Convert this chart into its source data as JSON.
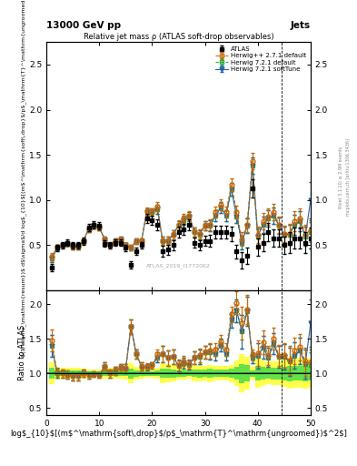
{
  "title_top": "13000 GeV pp",
  "title_right": "Jets",
  "plot_title": "Relative jet mass ρ (ATLAS soft-drop observables)",
  "ylabel_main": "(1/σ$_{resum}$) dσ/d log$_{10}$[(m$^{soft drop}$/p$_T^{ungroomed}$)$^2$]",
  "ylabel_ratio": "Ratio to ATLAS",
  "xlabel": "log$_{10}$[(m$^{soft drop}$/p$_T^{ungroomed}$)$^2$]",
  "watermark": "ATLAS_2019_I1772062",
  "right_label1": "Rivet 3.1.10; ≥ 2.9M events",
  "right_label2": "mcplots.cern.ch [arXiv:1306.3436]",
  "legend_entries": [
    "ATLAS",
    "Herwig++ 2.7.1 default",
    "Herwig 7.2.1 default",
    "Herwig 7.2.1 softTune"
  ],
  "hppcolor": "#cc6600",
  "h721color": "#33aa33",
  "h721stcolor": "#2266aa",
  "x_data": [
    1,
    2,
    3,
    4,
    5,
    6,
    7,
    8,
    9,
    10,
    11,
    12,
    13,
    14,
    15,
    16,
    17,
    18,
    19,
    20,
    21,
    22,
    23,
    24,
    25,
    26,
    27,
    28,
    29,
    30,
    31,
    32,
    33,
    34,
    35,
    36,
    37,
    38,
    39,
    40,
    41,
    42,
    43,
    44,
    45,
    46,
    47,
    48,
    49,
    50
  ],
  "atlas_y": [
    0.25,
    0.47,
    0.5,
    0.53,
    0.5,
    0.5,
    0.55,
    0.7,
    0.73,
    0.72,
    0.52,
    0.5,
    0.53,
    0.53,
    0.47,
    0.28,
    0.43,
    0.5,
    0.8,
    0.78,
    0.73,
    0.43,
    0.45,
    0.5,
    0.65,
    0.68,
    0.73,
    0.53,
    0.5,
    0.55,
    0.55,
    0.65,
    0.65,
    0.65,
    0.63,
    0.43,
    0.33,
    0.38,
    1.13,
    0.48,
    0.53,
    0.65,
    0.58,
    0.58,
    0.5,
    0.53,
    0.58,
    0.58,
    0.53,
    0.58
  ],
  "atlas_yerr_lo": [
    0.04,
    0.04,
    0.04,
    0.04,
    0.04,
    0.04,
    0.04,
    0.04,
    0.04,
    0.04,
    0.04,
    0.04,
    0.04,
    0.04,
    0.04,
    0.04,
    0.04,
    0.04,
    0.05,
    0.05,
    0.06,
    0.06,
    0.06,
    0.06,
    0.06,
    0.06,
    0.06,
    0.06,
    0.06,
    0.06,
    0.07,
    0.07,
    0.07,
    0.07,
    0.08,
    0.08,
    0.09,
    0.09,
    0.1,
    0.1,
    0.1,
    0.1,
    0.1,
    0.1,
    0.1,
    0.12,
    0.12,
    0.12,
    0.12,
    0.12
  ],
  "atlas_yerr_hi": [
    0.04,
    0.04,
    0.04,
    0.04,
    0.04,
    0.04,
    0.04,
    0.04,
    0.04,
    0.04,
    0.04,
    0.04,
    0.04,
    0.04,
    0.04,
    0.04,
    0.04,
    0.04,
    0.05,
    0.05,
    0.06,
    0.06,
    0.06,
    0.06,
    0.06,
    0.06,
    0.06,
    0.06,
    0.06,
    0.06,
    0.07,
    0.07,
    0.07,
    0.07,
    0.08,
    0.08,
    0.09,
    0.09,
    0.1,
    0.1,
    0.1,
    0.1,
    0.1,
    0.1,
    0.1,
    0.12,
    0.12,
    0.12,
    0.12,
    0.12
  ],
  "hpp_y": [
    0.37,
    0.48,
    0.5,
    0.52,
    0.48,
    0.48,
    0.55,
    0.68,
    0.72,
    0.7,
    0.57,
    0.5,
    0.55,
    0.57,
    0.5,
    0.47,
    0.55,
    0.55,
    0.88,
    0.87,
    0.93,
    0.55,
    0.55,
    0.62,
    0.73,
    0.8,
    0.83,
    0.65,
    0.63,
    0.72,
    0.73,
    0.87,
    0.95,
    0.87,
    1.17,
    0.87,
    0.57,
    0.73,
    1.43,
    0.62,
    0.77,
    0.82,
    0.87,
    0.73,
    0.63,
    0.63,
    0.77,
    0.8,
    0.62,
    0.67
  ],
  "hpp_yerr": [
    0.04,
    0.03,
    0.03,
    0.03,
    0.03,
    0.03,
    0.03,
    0.03,
    0.03,
    0.03,
    0.03,
    0.03,
    0.03,
    0.03,
    0.03,
    0.03,
    0.03,
    0.03,
    0.04,
    0.04,
    0.05,
    0.05,
    0.05,
    0.05,
    0.05,
    0.05,
    0.05,
    0.05,
    0.05,
    0.05,
    0.06,
    0.06,
    0.06,
    0.06,
    0.07,
    0.07,
    0.08,
    0.08,
    0.09,
    0.09,
    0.09,
    0.09,
    0.09,
    0.09,
    0.09,
    0.11,
    0.11,
    0.11,
    0.11,
    0.11
  ],
  "h721_y": [
    0.35,
    0.47,
    0.5,
    0.52,
    0.48,
    0.48,
    0.55,
    0.68,
    0.72,
    0.7,
    0.57,
    0.5,
    0.55,
    0.57,
    0.5,
    0.47,
    0.55,
    0.55,
    0.87,
    0.87,
    0.9,
    0.55,
    0.55,
    0.62,
    0.72,
    0.78,
    0.82,
    0.65,
    0.62,
    0.72,
    0.72,
    0.83,
    0.92,
    0.83,
    1.12,
    0.82,
    0.53,
    0.72,
    1.38,
    0.6,
    0.73,
    0.8,
    0.83,
    0.72,
    0.62,
    0.62,
    0.73,
    0.77,
    0.6,
    0.65
  ],
  "h721_yerr": [
    0.04,
    0.03,
    0.03,
    0.03,
    0.03,
    0.03,
    0.03,
    0.03,
    0.03,
    0.03,
    0.03,
    0.03,
    0.03,
    0.03,
    0.03,
    0.03,
    0.03,
    0.03,
    0.04,
    0.04,
    0.05,
    0.05,
    0.05,
    0.05,
    0.05,
    0.05,
    0.05,
    0.05,
    0.05,
    0.05,
    0.06,
    0.06,
    0.06,
    0.06,
    0.07,
    0.07,
    0.08,
    0.08,
    0.09,
    0.09,
    0.09,
    0.09,
    0.09,
    0.09,
    0.09,
    0.11,
    0.11,
    0.11,
    0.11,
    0.11
  ],
  "h721st_y": [
    0.35,
    0.47,
    0.5,
    0.52,
    0.48,
    0.48,
    0.55,
    0.68,
    0.72,
    0.7,
    0.57,
    0.5,
    0.55,
    0.57,
    0.5,
    0.47,
    0.55,
    0.55,
    0.87,
    0.87,
    0.9,
    0.55,
    0.55,
    0.62,
    0.72,
    0.78,
    0.82,
    0.65,
    0.62,
    0.72,
    0.72,
    0.83,
    0.92,
    0.83,
    1.12,
    0.82,
    0.53,
    0.72,
    1.38,
    0.6,
    0.73,
    0.8,
    0.83,
    0.72,
    0.62,
    0.62,
    0.73,
    0.77,
    0.6,
    1.0
  ],
  "h721st_yerr": [
    0.04,
    0.03,
    0.03,
    0.03,
    0.03,
    0.03,
    0.03,
    0.03,
    0.03,
    0.03,
    0.03,
    0.03,
    0.03,
    0.03,
    0.03,
    0.03,
    0.03,
    0.03,
    0.04,
    0.04,
    0.05,
    0.05,
    0.05,
    0.05,
    0.05,
    0.05,
    0.05,
    0.05,
    0.05,
    0.05,
    0.06,
    0.06,
    0.06,
    0.06,
    0.07,
    0.07,
    0.08,
    0.08,
    0.09,
    0.09,
    0.09,
    0.09,
    0.09,
    0.09,
    0.09,
    0.11,
    0.11,
    0.11,
    0.11,
    0.2
  ],
  "xlim": [
    0,
    50
  ],
  "ylim_main": [
    0.0,
    2.75
  ],
  "ylim_ratio": [
    0.4,
    2.2
  ],
  "yticks_main": [
    0.5,
    1.0,
    1.5,
    2.0,
    2.5
  ],
  "yticks_ratio": [
    0.5,
    1.0,
    1.5,
    2.0
  ],
  "xticks": [
    0,
    10,
    20,
    30,
    40,
    50
  ],
  "dashed_vline_x": 44.5,
  "band_yellow_alpha": 0.7,
  "band_green_alpha": 0.6
}
